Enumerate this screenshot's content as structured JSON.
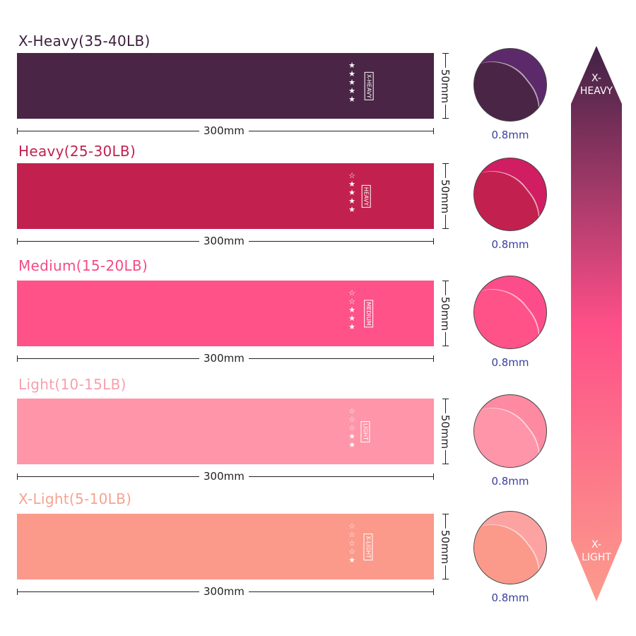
{
  "bands": [
    {
      "title": "X-Heavy(35-40LB)",
      "level": "X-HEAVY",
      "stars": 5,
      "color": "#4a2545",
      "title_color": "#3d1f3b",
      "circle_color": "#5c2a6a",
      "length": "300mm",
      "width": "50mm",
      "thickness": "0.8mm"
    },
    {
      "title": "Heavy(25-30LB)",
      "level": "HEAVY",
      "stars": 4,
      "color": "#c2214f",
      "title_color": "#c2214f",
      "circle_color": "#d11d62",
      "length": "300mm",
      "width": "50mm",
      "thickness": "0.8mm"
    },
    {
      "title": "Medium(15-20LB)",
      "level": "MEDIUM",
      "stars": 3,
      "color": "#fe5289",
      "title_color": "#f54b84",
      "circle_color": "#fc4d8a",
      "length": "300mm",
      "width": "50mm",
      "thickness": "0.8mm"
    },
    {
      "title": "Light(10-15LB)",
      "level": "LIGHT",
      "stars": 2,
      "color": "#fe95a8",
      "title_color": "#f7a0ae",
      "circle_color": "#fd8aa0",
      "length": "300mm",
      "width": "50mm",
      "thickness": "0.8mm"
    },
    {
      "title": "X-Light(5-10LB)",
      "level": "X-LIGHT",
      "stars": 1,
      "color": "#fb998a",
      "title_color": "#f7a392",
      "circle_color": "#fca3a2",
      "length": "300mm",
      "width": "50mm",
      "thickness": "0.8mm"
    }
  ],
  "max_stars": 5,
  "scale": {
    "top_label_1": "X-",
    "top_label_2": "HEAVY",
    "bottom_label_1": "X-",
    "bottom_label_2": "LIGHT",
    "top_color": "#3f2245",
    "mid_color": "#fe4f88",
    "bottom_color": "#fb9c8c"
  }
}
